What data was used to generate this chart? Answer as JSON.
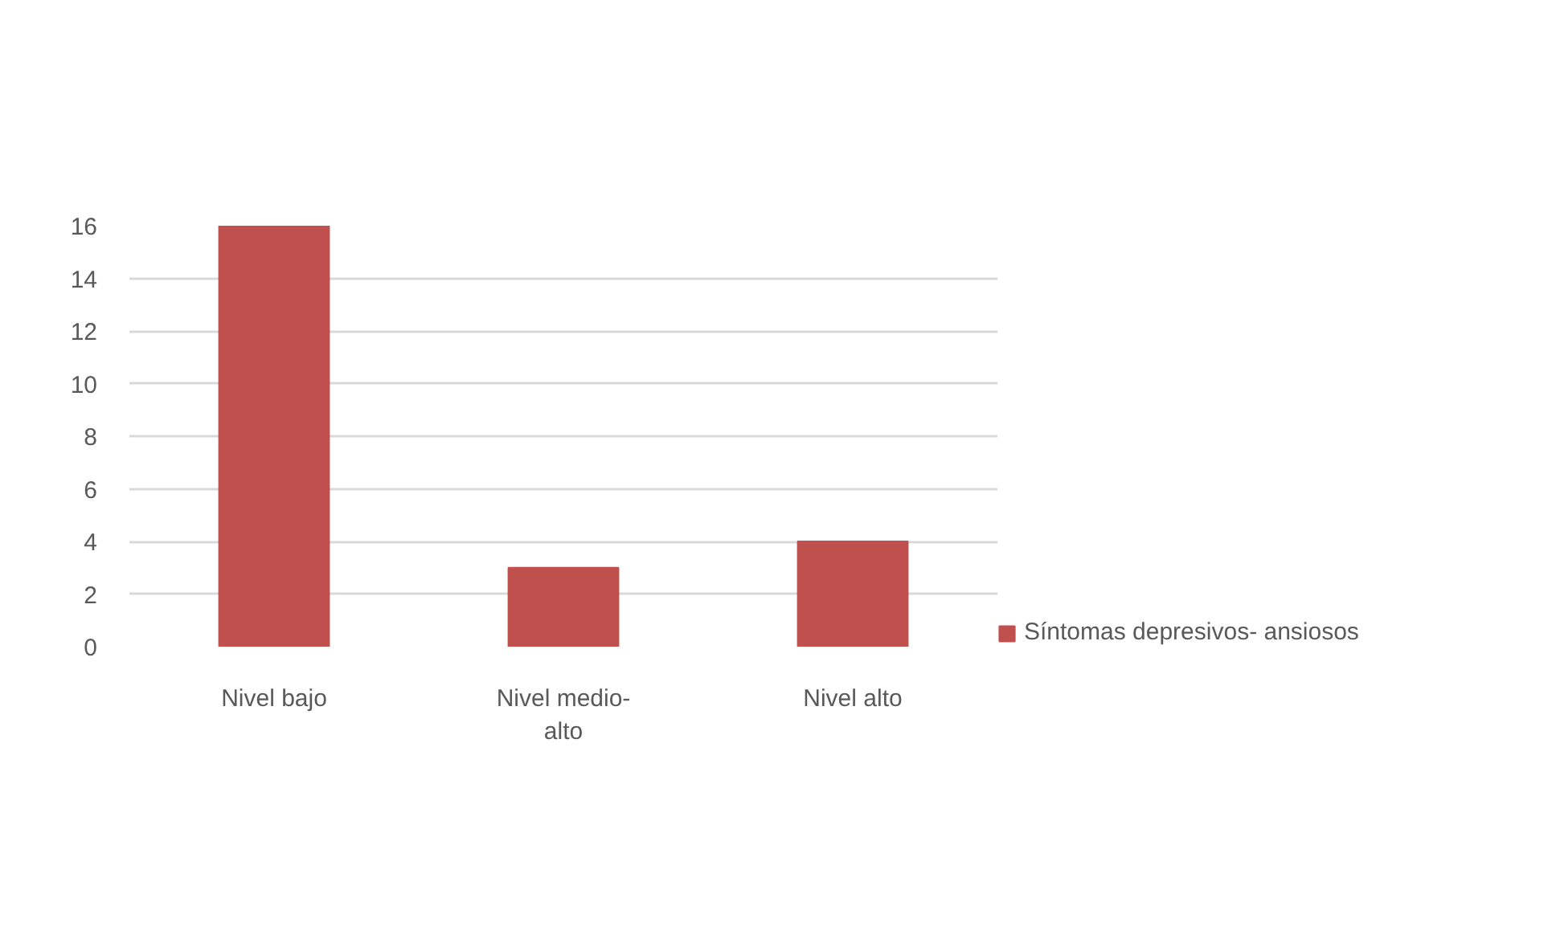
{
  "chart_data": {
    "type": "bar",
    "categories": [
      "Nivel bajo",
      "Nivel medio-alto",
      "Nivel alto"
    ],
    "series": [
      {
        "name": "Síntomas depresivos- ansiosos",
        "color": "#c0504d",
        "values": [
          16,
          3,
          4
        ]
      }
    ],
    "ylim": [
      0,
      16
    ],
    "yticks": [
      0,
      2,
      4,
      6,
      8,
      10,
      12,
      14,
      16
    ],
    "grid": "y",
    "legend": "right"
  }
}
